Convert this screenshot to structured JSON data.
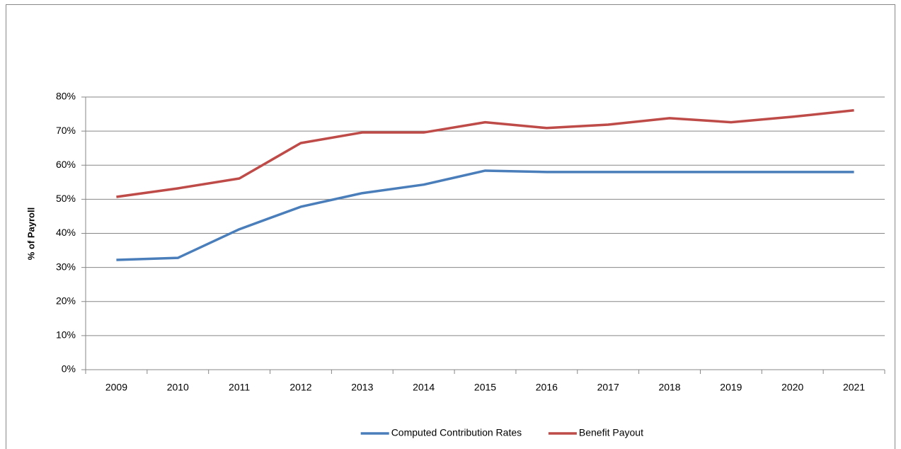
{
  "chart_data": {
    "type": "line",
    "y_label": "% of Payroll",
    "categories": [
      "2009",
      "2010",
      "2011",
      "2012",
      "2013",
      "2014",
      "2015",
      "2016",
      "2017",
      "2018",
      "2019",
      "2020",
      "2021"
    ],
    "series": [
      {
        "name": "Computed Contribution Rates",
        "color": "#4a7ebb",
        "values": [
          32.2,
          32.8,
          41.2,
          47.8,
          51.8,
          54.3,
          58.4,
          58.0,
          58.0,
          58.0,
          58.0,
          58.0,
          58.0
        ]
      },
      {
        "name": "Benefit Payout",
        "color": "#be4b48",
        "values": [
          50.7,
          53.2,
          56.1,
          66.5,
          69.6,
          69.6,
          72.6,
          70.9,
          71.9,
          73.8,
          72.6,
          74.2,
          76.1
        ]
      }
    ],
    "ylim": [
      0,
      80
    ],
    "yticks": [
      {
        "value": 0,
        "label": "0%"
      },
      {
        "value": 10,
        "label": "10%"
      },
      {
        "value": 20,
        "label": "20%"
      },
      {
        "value": 30,
        "label": "30%"
      },
      {
        "value": 40,
        "label": "40%"
      },
      {
        "value": 50,
        "label": "50%"
      },
      {
        "value": 60,
        "label": "60%"
      },
      {
        "value": 70,
        "label": "70%"
      },
      {
        "value": 80,
        "label": "80%"
      }
    ],
    "grid": true,
    "legend": "bottom"
  }
}
